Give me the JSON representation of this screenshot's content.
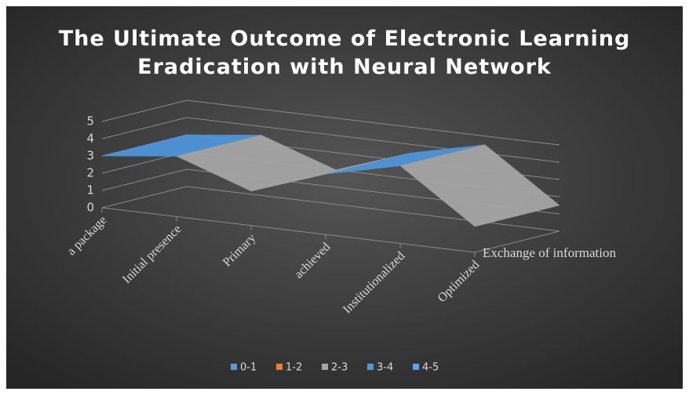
{
  "chart_data": {
    "type": "surface",
    "title": "The Ultimate Outcome of Electronic Learning Eradication with Neural Network",
    "categories": [
      "a package",
      "Initial presence",
      "Primary",
      "achieved",
      "Institutionalized",
      "Optimized"
    ],
    "series": [
      {
        "name": "Exchange of information",
        "values": [
          3,
          3.5,
          2,
          3.5,
          4.5,
          1.5
        ]
      }
    ],
    "ylim": [
      0,
      5
    ],
    "yticks": [
      0,
      1,
      2,
      3,
      4,
      5
    ],
    "bands": [
      {
        "name": "0-1",
        "color": "#5b9bd5"
      },
      {
        "name": "1-2",
        "color": "#ed7d31"
      },
      {
        "name": "2-3",
        "color": "#a5a5a5"
      },
      {
        "name": "3-4",
        "color": "#4e95d9"
      },
      {
        "name": "4-5",
        "color": "#5ba3e6"
      }
    ],
    "grid": true
  }
}
